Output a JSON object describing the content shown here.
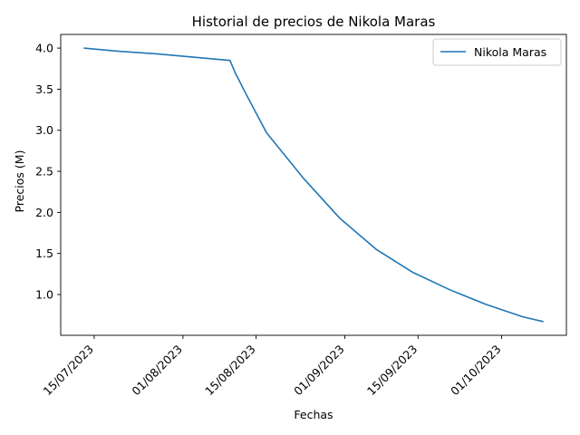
{
  "chart_data": {
    "type": "line",
    "title": "Historial de precios de Nikola Maras",
    "xlabel": "Fechas",
    "ylabel": "Precios (M)",
    "x_ticks": [
      "15/07/2023",
      "01/08/2023",
      "15/08/2023",
      "01/09/2023",
      "15/09/2023",
      "01/10/2023"
    ],
    "y_ticks": [
      "1.0",
      "1.5",
      "2.0",
      "2.5",
      "3.0",
      "3.5",
      "4.0"
    ],
    "legend_position": "top-right",
    "series": [
      {
        "name": "Nikola Maras",
        "color": "#1f77b4",
        "points": [
          {
            "x": "2023-07-13",
            "y": 4.0
          },
          {
            "x": "2023-07-20",
            "y": 3.96
          },
          {
            "x": "2023-07-27",
            "y": 3.93
          },
          {
            "x": "2023-08-03",
            "y": 3.89
          },
          {
            "x": "2023-08-10",
            "y": 3.85
          },
          {
            "x": "2023-08-11",
            "y": 3.7
          },
          {
            "x": "2023-08-13",
            "y": 3.45
          },
          {
            "x": "2023-08-17",
            "y": 2.97
          },
          {
            "x": "2023-08-24",
            "y": 2.42
          },
          {
            "x": "2023-08-31",
            "y": 1.93
          },
          {
            "x": "2023-09-07",
            "y": 1.55
          },
          {
            "x": "2023-09-14",
            "y": 1.27
          },
          {
            "x": "2023-09-21",
            "y": 1.06
          },
          {
            "x": "2023-09-28",
            "y": 0.88
          },
          {
            "x": "2023-10-05",
            "y": 0.73
          },
          {
            "x": "2023-10-09",
            "y": 0.67
          }
        ]
      }
    ]
  }
}
